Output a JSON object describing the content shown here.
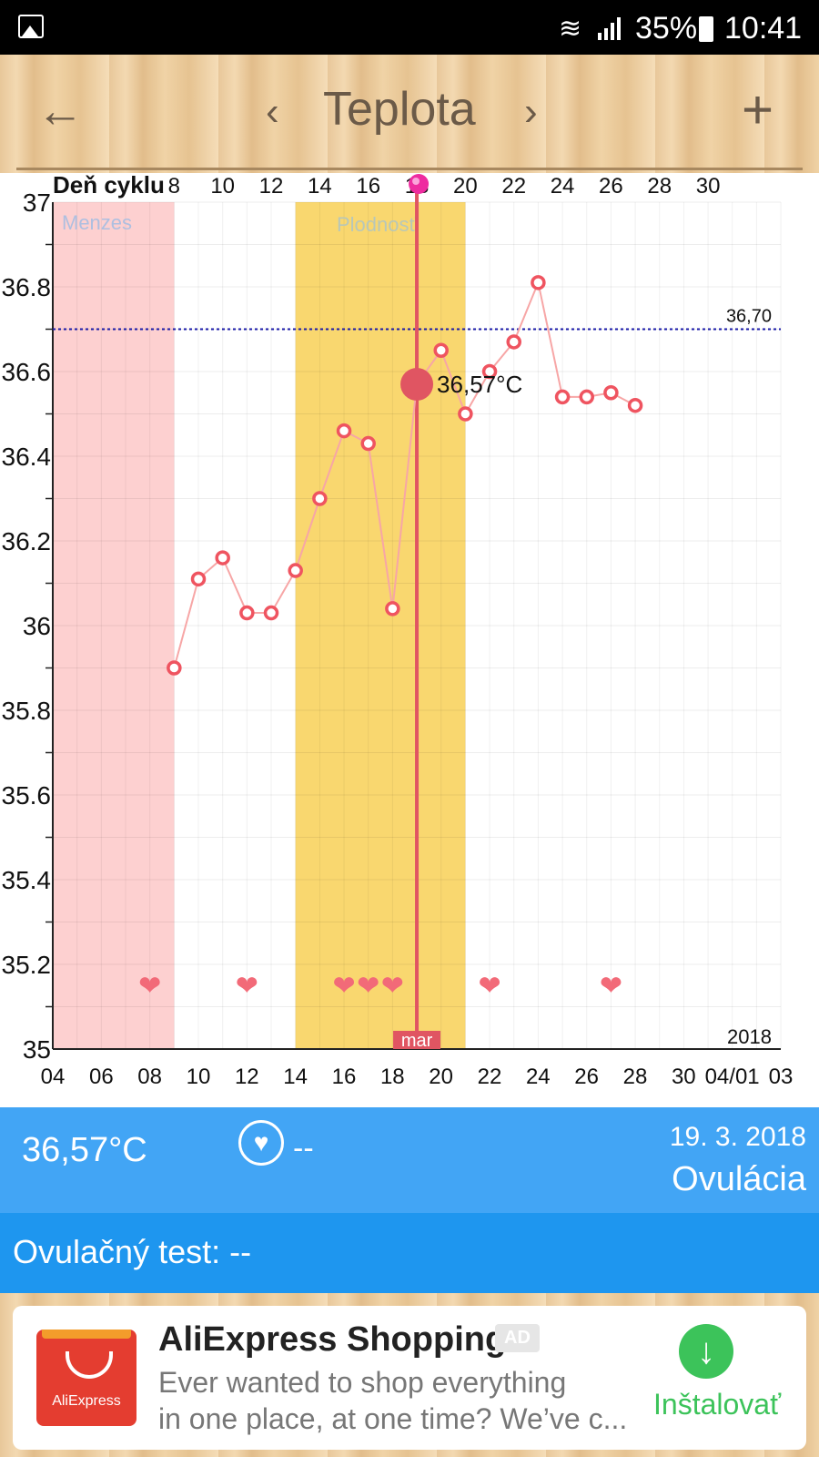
{
  "status_bar": {
    "battery": "35%",
    "time": "10:41"
  },
  "toolbar": {
    "back_icon": "arrow-left",
    "prev_icon": "chevron-left",
    "title": "Teplota",
    "next_icon": "chevron-right",
    "add_icon": "plus"
  },
  "chart_data": {
    "type": "line",
    "top_axis_title": "Deň cyklu",
    "cycle_day_ticks": [
      "8",
      "10",
      "12",
      "14",
      "16",
      "18",
      "20",
      "22",
      "24",
      "26",
      "28",
      "30"
    ],
    "bottom_ticks": [
      "04",
      "06",
      "08",
      "10",
      "12",
      "14",
      "16",
      "18",
      "20",
      "22",
      "24",
      "26",
      "28",
      "30",
      "04/01",
      "03"
    ],
    "year_label": "2018",
    "month_label": "mar",
    "y_ticks": [
      "37",
      "36.8",
      "36.6",
      "36.4",
      "36.2",
      "36",
      "35.8",
      "35.6",
      "35.4",
      "35.2",
      "35"
    ],
    "ylim": [
      35,
      37
    ],
    "bands": [
      {
        "label": "Menzes",
        "from_day": 4,
        "to_day": 9,
        "color": "#fdd0d0"
      },
      {
        "label": "Plodnosť",
        "from_day": 14,
        "to_day": 21,
        "color": "#f9d76f"
      }
    ],
    "coverline": {
      "value": 36.7,
      "label": "36,70"
    },
    "series": [
      {
        "x": [
          9,
          10,
          11,
          12,
          13,
          14,
          15,
          16,
          17,
          18,
          19,
          20,
          21,
          22,
          23,
          24,
          25,
          26,
          27,
          28
        ],
        "values": [
          35.9,
          36.11,
          36.16,
          36.03,
          36.03,
          36.13,
          36.3,
          36.46,
          36.43,
          36.04,
          36.57,
          36.65,
          36.5,
          36.6,
          36.67,
          36.81,
          36.54,
          36.54,
          36.55,
          36.52
        ]
      }
    ],
    "selected": {
      "x": 19,
      "value": 36.57,
      "label": "36,57°C"
    },
    "intercourse_days": [
      8,
      12,
      16,
      17,
      18,
      22,
      27
    ],
    "colors": {
      "line": "#f7a6a6",
      "marker": "#ef5460",
      "selected": "#e05562",
      "coverline": "#1a1aa8",
      "today_line": "#e05562"
    }
  },
  "info": {
    "temp": "36,57°C",
    "sex_icon": "heart-circle-icon",
    "sex_value": "--",
    "date": "19. 3. 2018",
    "phase": "Ovulácia"
  },
  "test": {
    "text": "Ovulačný test: --"
  },
  "ad": {
    "logo_text": "AliExpress",
    "title": "AliExpress Shopping",
    "badge": "AD",
    "desc_line1": "Ever wanted to shop everything",
    "desc_line2": "in one place, at one time? We’ve c...",
    "install_label": "Inštalovať"
  }
}
